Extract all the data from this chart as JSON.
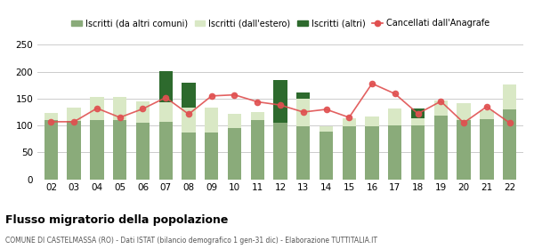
{
  "years": [
    "02",
    "03",
    "04",
    "05",
    "06",
    "07",
    "08",
    "09",
    "10",
    "11",
    "12",
    "13",
    "14",
    "15",
    "16",
    "17",
    "18",
    "19",
    "20",
    "21",
    "22"
  ],
  "iscritti_altri_comuni": [
    110,
    108,
    110,
    110,
    105,
    107,
    87,
    87,
    95,
    110,
    105,
    98,
    88,
    99,
    99,
    100,
    100,
    118,
    110,
    112,
    130
  ],
  "iscritti_estero": [
    14,
    26,
    43,
    43,
    40,
    37,
    47,
    46,
    26,
    15,
    0,
    52,
    10,
    15,
    18,
    32,
    14,
    28,
    32,
    16,
    46
  ],
  "iscritti_altri": [
    0,
    0,
    0,
    0,
    0,
    57,
    45,
    0,
    0,
    0,
    80,
    12,
    0,
    0,
    0,
    0,
    18,
    0,
    0,
    0,
    0
  ],
  "cancellati": [
    107,
    107,
    132,
    115,
    131,
    152,
    121,
    155,
    157,
    144,
    138,
    125,
    130,
    115,
    178,
    159,
    122,
    145,
    105,
    135,
    105
  ],
  "color_altri_comuni": "#8aab7a",
  "color_estero": "#d9e8c5",
  "color_altri": "#2d6a2d",
  "color_cancellati": "#e05050",
  "title": "Flusso migratorio della popolazione",
  "subtitle": "COMUNE DI CASTELMASSA (RO) - Dati ISTAT (bilancio demografico 1 gen-31 dic) - Elaborazione TUTTITALIA.IT",
  "legend_labels": [
    "Iscritti (da altri comuni)",
    "Iscritti (dall'estero)",
    "Iscritti (altri)",
    "Cancellati dall'Anagrafe"
  ],
  "ylim": [
    0,
    250
  ],
  "yticks": [
    0,
    50,
    100,
    150,
    200,
    250
  ],
  "bg_color": "#ffffff",
  "grid_color": "#cccccc"
}
